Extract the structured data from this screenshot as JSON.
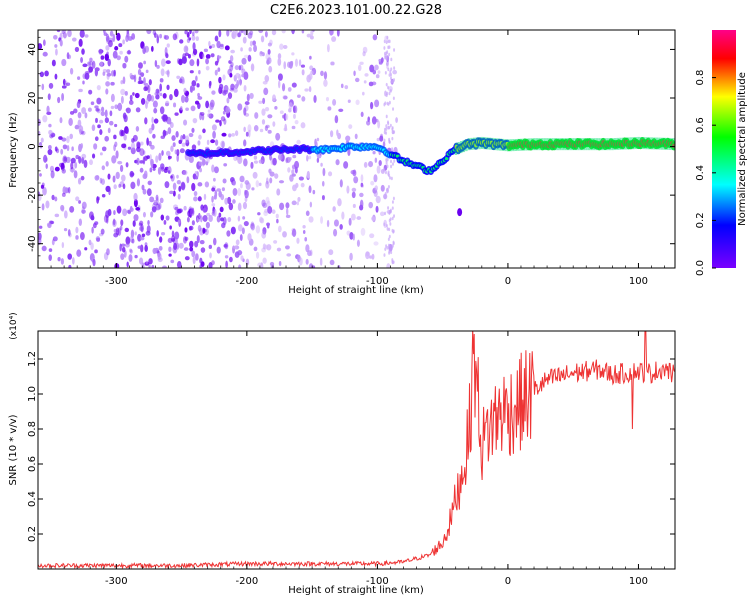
{
  "figure_title": "C2E6.2023.101.00.22.G28",
  "colors": {
    "snr_line": "#ee3333",
    "spectrogram_scatter": "#7a1ff0",
    "colorbar_stops": [
      "#7a00ff",
      "#0000ff",
      "#00ffff",
      "#00ff00",
      "#ffff00",
      "#ff0000",
      "#ff0088"
    ]
  },
  "chart_data": [
    {
      "type": "heatmap",
      "title": "",
      "xlabel": "Height of straight line (km)",
      "ylabel": "Frequency (Hz)",
      "xlim": [
        -360,
        128
      ],
      "ylim": [
        -50,
        48
      ],
      "xticks": [
        -300,
        -200,
        -100,
        0,
        100
      ],
      "yticks": [
        -40,
        -20,
        0,
        20,
        40
      ],
      "colorbar": {
        "label": "Normalized spectral amplitude",
        "range": [
          0.0,
          1.0
        ],
        "ticks": [
          "0.0",
          "0.2",
          "0.4",
          "0.6",
          "0.8"
        ]
      },
      "ridge": {
        "x": [
          -240,
          -200,
          -180,
          -160,
          -140,
          -120,
          -100,
          -90,
          -80,
          -70,
          -60,
          -50,
          -45,
          -40,
          -35,
          -30,
          -20,
          -10,
          0,
          20,
          50,
          80,
          100,
          128
        ],
        "y": [
          -3,
          -2,
          -1.5,
          -1,
          -1.2,
          0,
          0,
          -3,
          -6,
          -8,
          -10,
          -6,
          -3,
          -1,
          0,
          1,
          1.5,
          1,
          0.5,
          1,
          1,
          1,
          1.5,
          1
        ]
      },
      "stray_points": [
        {
          "x": -37,
          "y": -27
        }
      ]
    },
    {
      "type": "line",
      "title": "",
      "xlabel": "Height of straight line (km)",
      "ylabel": "SNR (10 * v/v)",
      "y_multiplier": "(x10⁴)",
      "xlim": [
        -360,
        128
      ],
      "ylim": [
        0,
        1.36
      ],
      "xticks": [
        -300,
        -200,
        -100,
        0,
        100
      ],
      "yticks": [
        0.2,
        0.4,
        0.6,
        0.8,
        1.0,
        1.2
      ],
      "series": [
        {
          "x": [
            -360,
            -300,
            -250,
            -200,
            -150,
            -120,
            -100,
            -80,
            -60,
            -50,
            -45,
            -40,
            -35,
            -30,
            -26,
            -20,
            -15,
            -10,
            -5,
            0,
            10,
            20,
            30,
            40,
            50,
            60,
            70,
            80,
            90,
            100,
            110,
            120,
            128
          ],
          "y": [
            0.02,
            0.02,
            0.02,
            0.03,
            0.03,
            0.03,
            0.03,
            0.04,
            0.08,
            0.15,
            0.25,
            0.4,
            0.55,
            0.75,
            1.25,
            0.7,
            0.8,
            0.85,
            0.9,
            0.9,
            0.95,
            1.02,
            1.08,
            1.1,
            1.12,
            1.13,
            1.14,
            1.11,
            1.12,
            1.13,
            1.12,
            1.15,
            1.1
          ]
        }
      ]
    }
  ]
}
